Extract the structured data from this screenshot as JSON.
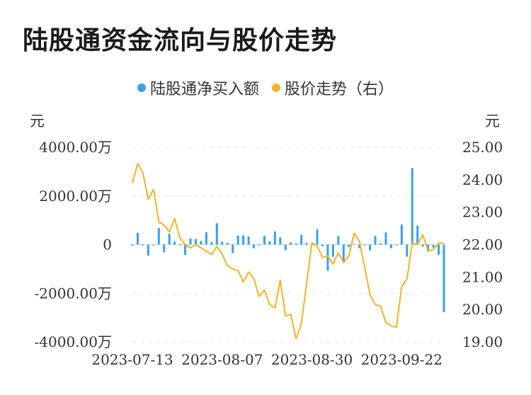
{
  "header": {
    "title": "陆股通资金流向与股价走势"
  },
  "legend": {
    "items": [
      {
        "label": "陆股通净买入额",
        "color": "#3aa0ea"
      },
      {
        "label": "股价走势（右）",
        "color": "#f5b324"
      }
    ]
  },
  "chart_data": {
    "type": "bar+line",
    "title": "陆股通资金流向与股价走势",
    "left_axis": {
      "unit": "元",
      "ticks": [
        "4000.00万",
        "2000.00万",
        "0",
        "-2000.00万",
        "-4000.00万"
      ],
      "tick_values": [
        4000,
        2000,
        0,
        -2000,
        -4000
      ],
      "range": [
        -4000,
        4000
      ],
      "value_unit": "万元"
    },
    "right_axis": {
      "unit": "元",
      "ticks": [
        "25.00",
        "24.00",
        "23.00",
        "22.00",
        "21.00",
        "20.00",
        "19.00"
      ],
      "tick_values": [
        25,
        24,
        23,
        22,
        21,
        20,
        19
      ],
      "range": [
        19,
        25
      ]
    },
    "x_ticks": [
      {
        "label": "2023-07-13",
        "index": 0
      },
      {
        "label": "2023-08-07",
        "index": 17
      },
      {
        "label": "2023-08-30",
        "index": 34
      },
      {
        "label": "2023-09-22",
        "index": 51
      }
    ],
    "grid": true,
    "legend_position": "top",
    "series": [
      {
        "name": "陆股通净买入额",
        "type": "bar",
        "color": "#3aa0ea",
        "values": [
          -50,
          480,
          0,
          -450,
          0,
          680,
          -320,
          450,
          120,
          0,
          -420,
          250,
          230,
          150,
          510,
          100,
          880,
          120,
          70,
          -350,
          370,
          380,
          330,
          -150,
          0,
          360,
          140,
          540,
          300,
          -230,
          90,
          50,
          400,
          70,
          0,
          620,
          -70,
          -1080,
          -500,
          350,
          -700,
          -100,
          20,
          -150,
          0,
          -240,
          360,
          60,
          500,
          -150,
          0,
          820,
          -500,
          3150,
          780,
          -80,
          -300,
          -120,
          -420,
          -2780
        ]
      },
      {
        "name": "股价走势（右）",
        "type": "line",
        "color": "#f5b324",
        "values": [
          23.9,
          24.5,
          24.2,
          23.4,
          23.7,
          22.7,
          22.6,
          22.4,
          22.8,
          22.2,
          22.0,
          21.9,
          22.0,
          21.9,
          21.8,
          21.7,
          21.95,
          21.7,
          21.35,
          21.25,
          21.2,
          20.85,
          21.15,
          20.95,
          20.4,
          20.6,
          20.15,
          20.05,
          20.9,
          19.8,
          19.85,
          19.1,
          19.55,
          20.8,
          22.05,
          21.95,
          21.6,
          21.65,
          21.4,
          21.75,
          21.45,
          21.65,
          22.35,
          22.1,
          21.3,
          20.45,
          20.15,
          20.1,
          19.6,
          19.5,
          19.45,
          20.7,
          20.95,
          22.05,
          22.0,
          22.3,
          21.8,
          21.85,
          22.05,
          22.05
        ]
      }
    ]
  }
}
